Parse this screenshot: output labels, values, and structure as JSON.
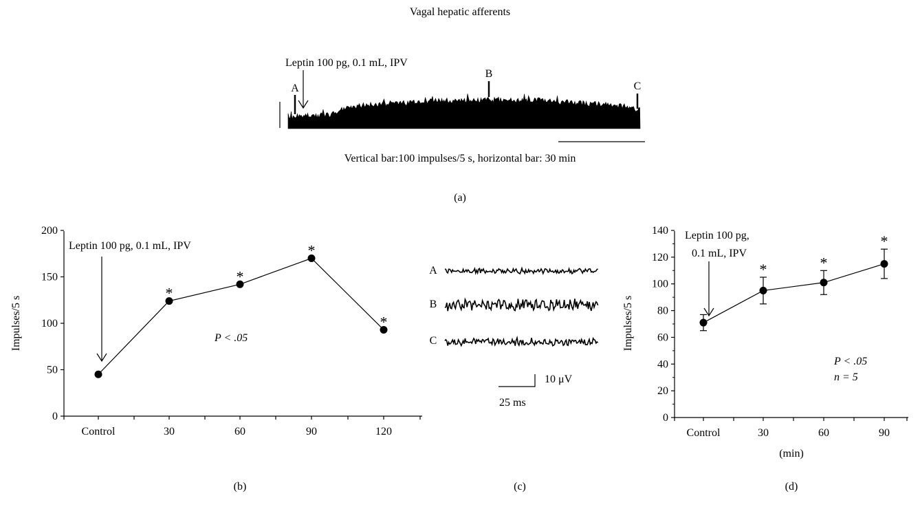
{
  "figure_title": "Vagal hepatic afferents",
  "panel_labels": {
    "a": "(a)",
    "b": "(b)",
    "c": "(c)",
    "d": "(d)"
  },
  "panel_a": {
    "annotation": "Leptin 100 pg, 0.1 mL, IPV",
    "markers": [
      "A",
      "B",
      "C"
    ],
    "scale_caption": "Vertical bar:100 impulses/5 s, horizontal bar: 30 min"
  },
  "panel_c": {
    "traces": [
      "A",
      "B",
      "C"
    ],
    "voltage_scale": "10 μV",
    "time_scale": "25 ms"
  },
  "chart_data": [
    {
      "type": "line",
      "panel": "b",
      "categories": [
        "Control",
        "30",
        "60",
        "90",
        "120"
      ],
      "values": [
        45,
        124,
        142,
        170,
        93
      ],
      "significant": [
        false,
        true,
        true,
        true,
        true
      ],
      "ylabel": "Impulses/5 s",
      "xlabel": "",
      "ylim": [
        0,
        200
      ],
      "yticks": [
        0,
        50,
        100,
        150,
        200
      ],
      "annotation": "Leptin 100 pg, 0.1 mL, IPV",
      "stat_text": "P < .05",
      "star_symbol": "*"
    },
    {
      "type": "line",
      "panel": "d",
      "categories": [
        "Control",
        "30",
        "60",
        "90"
      ],
      "values": [
        71,
        95,
        101,
        115
      ],
      "errors": [
        6,
        10,
        9,
        11
      ],
      "significant": [
        false,
        true,
        true,
        true
      ],
      "ylabel": "Impulses/5 s",
      "xlabel": "(min)",
      "ylim": [
        0,
        140
      ],
      "yticks": [
        0,
        20,
        40,
        60,
        80,
        100,
        120,
        140
      ],
      "annotation_line1": "Leptin 100 pg,",
      "annotation_line2": "0.1 mL, IPV",
      "stat_text": "P < .05",
      "n_text": "n = 5",
      "star_symbol": "*"
    }
  ]
}
